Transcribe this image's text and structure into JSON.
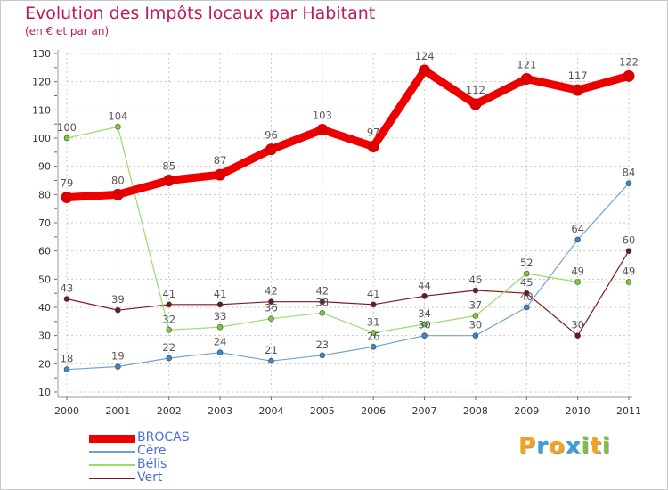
{
  "header": {
    "title": "Evolution des Impôts locaux par Habitant",
    "subtitle": "(en € et par an)"
  },
  "colors": {
    "title": "#c2185b",
    "grid": "#c8c8c8",
    "axis": "#666666",
    "legend_label": "#4a6fdc"
  },
  "chart_data": {
    "type": "line",
    "title": "Evolution des Impôts locaux par Habitant",
    "subtitle": "(en € et par an)",
    "xlabel": "",
    "ylabel": "",
    "ylim": [
      10,
      130
    ],
    "yticks": [
      10,
      20,
      30,
      40,
      50,
      60,
      70,
      80,
      90,
      100,
      110,
      120,
      130
    ],
    "grid": true,
    "legend_position": "bottom-left",
    "x": [
      "2000",
      "2001",
      "2002",
      "2003",
      "2004",
      "2005",
      "2006",
      "2007",
      "2008",
      "2009",
      "2010",
      "2011"
    ],
    "series": [
      {
        "name": "Vert",
        "color": "#7b1c22",
        "marker": "#6b1a1f",
        "width": 1.2,
        "dot": 3,
        "values": [
          43,
          39,
          41,
          41,
          42,
          42,
          41,
          44,
          46,
          45,
          30,
          60
        ]
      },
      {
        "name": "Bélis",
        "color": "#99dd66",
        "marker": "#77cc33",
        "width": 1.2,
        "dot": 3,
        "values": [
          100,
          104,
          32,
          33,
          36,
          38,
          31,
          34,
          37,
          52,
          49,
          49
        ]
      },
      {
        "name": "Cère",
        "color": "#6fa3d6",
        "marker": "#3a87cc",
        "width": 1.2,
        "dot": 3,
        "values": [
          18,
          19,
          22,
          24,
          21,
          23,
          26,
          30,
          30,
          40,
          64,
          84
        ]
      },
      {
        "name": "BROCAS",
        "color": "#ee0000",
        "marker": "#dd0000",
        "width": 9,
        "dot": 6.5,
        "values": [
          79,
          80,
          85,
          87,
          96,
          103,
          97,
          124,
          112,
          121,
          117,
          122
        ]
      }
    ]
  },
  "legend": {
    "items": [
      {
        "name": "BROCAS",
        "color": "#ee0000"
      },
      {
        "name": "Cère",
        "color": "#6fa3d6"
      },
      {
        "name": "Bélis",
        "color": "#99dd66"
      },
      {
        "name": "Vert",
        "color": "#7b1c22"
      }
    ]
  },
  "logo": {
    "letters": [
      {
        "ch": "P",
        "color": "#f7a21a"
      },
      {
        "ch": "r",
        "color": "#3aa0dd"
      },
      {
        "ch": "o",
        "color": "#f7a21a"
      },
      {
        "ch": "x",
        "color": "#3aa0dd"
      },
      {
        "ch": "i",
        "color": "#7cc142"
      },
      {
        "ch": "t",
        "color": "#f7a21a"
      },
      {
        "ch": "i",
        "color": "#7cc142"
      }
    ]
  }
}
